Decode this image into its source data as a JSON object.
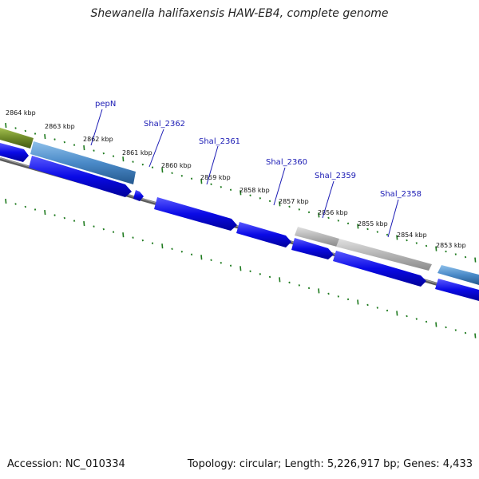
{
  "title": "Shewanella halifaxensis HAW-EB4, complete genome",
  "footer": {
    "accession": "Accession: NC_010334",
    "summary": "Topology: circular; Length: 5,226,917 bp; Genes: 4,433"
  },
  "colors": {
    "forward_gene": "#0a0ae6",
    "reverse_gene": "#4a8ac8",
    "pseudo_gene": "#b4b4b4",
    "other_gene": "#6e8a28",
    "backbone": "#777777",
    "tick": "#1e7a1e",
    "gene_label": "#1a1ab4"
  },
  "kbp_ticks": [
    "2864 kbp",
    "2863 kbp",
    "2862 kbp",
    "2861 kbp",
    "2860 kbp",
    "2859 kbp",
    "2858 kbp",
    "2857 kbp",
    "2856 kbp",
    "2855 kbp",
    "2854 kbp",
    "2853 kbp"
  ],
  "gene_labels": [
    "pepN",
    "Shal_2362",
    "Shal_2361",
    "Shal_2360",
    "Shal_2359",
    "Shal_2358"
  ]
}
